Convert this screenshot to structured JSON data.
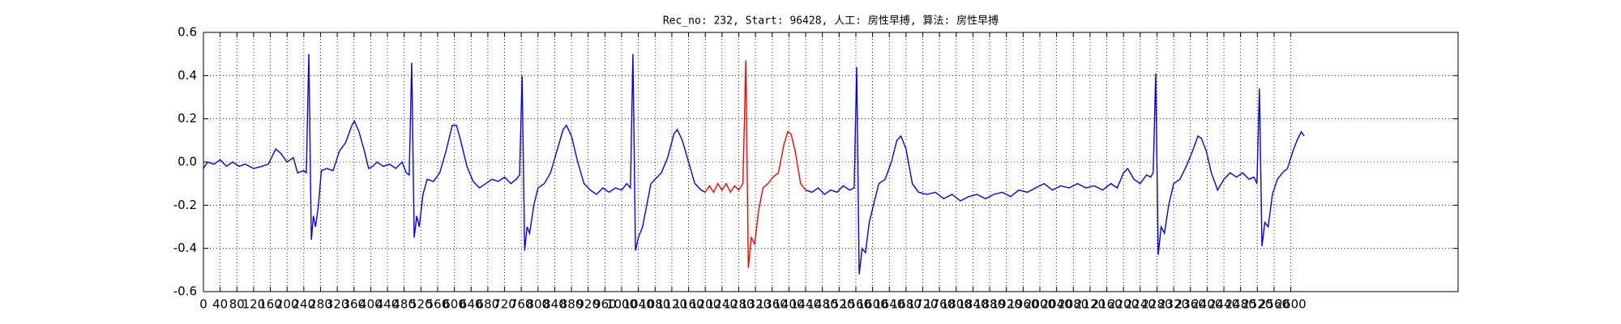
{
  "chart_data": {
    "type": "line",
    "title": "Rec_no: 232, Start: 96428, 人工: 房性早搏, 算法: 房性早搏",
    "x": [
      0,
      10,
      25,
      40,
      55,
      70,
      85,
      100,
      120,
      140,
      155,
      173,
      185,
      200,
      215,
      225,
      240,
      246,
      252,
      258,
      263,
      268,
      275,
      282,
      295,
      310,
      325,
      340,
      355,
      361,
      372,
      385,
      395,
      405,
      415,
      430,
      445,
      460,
      475,
      485,
      492,
      498,
      504,
      510,
      516,
      525,
      535,
      550,
      565,
      580,
      595,
      605,
      615,
      630,
      645,
      660,
      675,
      690,
      705,
      720,
      735,
      748,
      756,
      762,
      768,
      774,
      780,
      790,
      800,
      815,
      830,
      845,
      860,
      868,
      880,
      895,
      910,
      925,
      940,
      955,
      970,
      985,
      1000,
      1012,
      1021,
      1027,
      1033,
      1040,
      1050,
      1060,
      1070,
      1080,
      1095,
      1110,
      1125,
      1133,
      1145,
      1160,
      1175,
      1190,
      1200,
      1210,
      1220,
      1230,
      1240,
      1250,
      1260,
      1270,
      1280,
      1290,
      1297,
      1303,
      1310,
      1318,
      1328,
      1338,
      1350,
      1362,
      1375,
      1388,
      1397,
      1405,
      1415,
      1428,
      1440,
      1455,
      1470,
      1485,
      1500,
      1515,
      1530,
      1545,
      1556,
      1562,
      1568,
      1575,
      1583,
      1592,
      1602,
      1615,
      1630,
      1645,
      1658,
      1668,
      1680,
      1695,
      1710,
      1730,
      1750,
      1770,
      1790,
      1810,
      1830,
      1850,
      1870,
      1890,
      1910,
      1930,
      1950,
      1970,
      1990,
      2010,
      2030,
      2050,
      2070,
      2090,
      2110,
      2130,
      2150,
      2170,
      2185,
      2200,
      2210,
      2225,
      2240,
      2255,
      2265,
      2271,
      2277,
      2283,
      2290,
      2298,
      2308,
      2320,
      2335,
      2350,
      2365,
      2378,
      2386,
      2398,
      2410,
      2425,
      2440,
      2455,
      2470,
      2485,
      2500,
      2512,
      2519,
      2525,
      2531,
      2538,
      2546,
      2556,
      2568,
      2580,
      2592,
      2605,
      2615,
      2625,
      2632
    ],
    "series": [
      {
        "color": "#0000ff",
        "values": [
          -0.03,
          0.0,
          -0.01,
          0.01,
          -0.02,
          0.0,
          -0.02,
          -0.01,
          -0.03,
          -0.02,
          -0.01,
          0.06,
          0.04,
          0.0,
          0.02,
          -0.05,
          -0.04,
          -0.05,
          0.5,
          -0.36,
          -0.25,
          -0.3,
          -0.2,
          -0.04,
          -0.03,
          -0.04,
          0.05,
          0.09,
          0.17,
          0.19,
          0.14,
          0.05,
          -0.03,
          -0.02,
          0.0,
          -0.02,
          -0.01,
          -0.03,
          0.0,
          -0.05,
          -0.06,
          0.46,
          -0.35,
          -0.25,
          -0.3,
          -0.15,
          -0.08,
          -0.09,
          -0.05,
          0.05,
          0.17,
          0.17,
          0.1,
          -0.02,
          -0.09,
          -0.12,
          -0.1,
          -0.08,
          -0.09,
          -0.07,
          -0.1,
          -0.08,
          -0.06,
          0.4,
          -0.41,
          -0.3,
          -0.33,
          -0.2,
          -0.12,
          -0.1,
          -0.05,
          0.05,
          0.15,
          0.17,
          0.12,
          0.0,
          -0.1,
          -0.13,
          -0.15,
          -0.12,
          -0.14,
          -0.12,
          -0.13,
          -0.1,
          -0.12,
          0.5,
          -0.41,
          -0.35,
          -0.3,
          -0.2,
          -0.1,
          -0.08,
          -0.05,
          0.02,
          0.13,
          0.15,
          0.1,
          0.0,
          -0.1,
          -0.13,
          -0.14,
          null,
          null,
          null,
          null,
          null,
          null,
          null,
          null,
          null,
          null,
          null,
          null,
          null,
          null,
          null,
          null,
          null,
          null,
          null,
          null,
          null,
          null,
          null,
          -0.13,
          -0.14,
          -0.12,
          -0.15,
          -0.13,
          -0.14,
          -0.11,
          -0.13,
          -0.12,
          0.44,
          -0.52,
          -0.4,
          -0.42,
          -0.28,
          -0.2,
          -0.1,
          -0.08,
          0.0,
          0.1,
          0.12,
          0.06,
          -0.1,
          -0.14,
          -0.15,
          -0.14,
          -0.17,
          -0.15,
          -0.18,
          -0.16,
          -0.15,
          -0.17,
          -0.15,
          -0.14,
          -0.16,
          -0.13,
          -0.14,
          -0.12,
          -0.1,
          -0.13,
          -0.11,
          -0.12,
          -0.1,
          -0.12,
          -0.11,
          -0.13,
          -0.1,
          -0.12,
          -0.05,
          -0.03,
          -0.08,
          -0.1,
          -0.06,
          -0.07,
          -0.05,
          0.41,
          -0.43,
          -0.3,
          -0.33,
          -0.2,
          -0.1,
          -0.08,
          -0.02,
          0.05,
          0.12,
          0.11,
          0.05,
          -0.05,
          -0.13,
          -0.08,
          -0.05,
          -0.07,
          -0.05,
          -0.08,
          -0.07,
          -0.1,
          0.34,
          -0.39,
          -0.28,
          -0.3,
          -0.15,
          -0.08,
          -0.05,
          -0.03,
          0.05,
          0.1,
          0.14,
          0.12
        ]
      },
      {
        "color": "#ff0000",
        "values": [
          null,
          null,
          null,
          null,
          null,
          null,
          null,
          null,
          null,
          null,
          null,
          null,
          null,
          null,
          null,
          null,
          null,
          null,
          null,
          null,
          null,
          null,
          null,
          null,
          null,
          null,
          null,
          null,
          null,
          null,
          null,
          null,
          null,
          null,
          null,
          null,
          null,
          null,
          null,
          null,
          null,
          null,
          null,
          null,
          null,
          null,
          null,
          null,
          null,
          null,
          null,
          null,
          null,
          null,
          null,
          null,
          null,
          null,
          null,
          null,
          null,
          null,
          null,
          null,
          null,
          null,
          null,
          null,
          null,
          null,
          null,
          null,
          null,
          null,
          null,
          null,
          null,
          null,
          null,
          null,
          null,
          null,
          null,
          null,
          null,
          null,
          null,
          null,
          null,
          null,
          null,
          null,
          null,
          null,
          null,
          null,
          null,
          null,
          null,
          null,
          -0.14,
          -0.11,
          -0.14,
          -0.1,
          -0.13,
          -0.1,
          -0.14,
          -0.11,
          -0.13,
          -0.1,
          0.47,
          -0.49,
          -0.35,
          -0.38,
          -0.22,
          -0.12,
          -0.1,
          -0.07,
          -0.05,
          0.08,
          0.14,
          0.13,
          0.05,
          -0.1,
          -0.13,
          null,
          null,
          null,
          null,
          null,
          null,
          null,
          null,
          null,
          null,
          null,
          null,
          null,
          null,
          null,
          null,
          null,
          null,
          null,
          null,
          null,
          null,
          null,
          null,
          null,
          null,
          null,
          null,
          null,
          null,
          null,
          null,
          null,
          null,
          null,
          null,
          null,
          null,
          null,
          null,
          null,
          null,
          null,
          null,
          null,
          null,
          null,
          null,
          null,
          null,
          null,
          null,
          null,
          null,
          null,
          null,
          null,
          null,
          null,
          null,
          null,
          null,
          null,
          null,
          null,
          null,
          null,
          null,
          null,
          null,
          null,
          null,
          null,
          null,
          null,
          null,
          null,
          null,
          null,
          null,
          null,
          null,
          null,
          null,
          null,
          null
        ]
      }
    ],
    "xlim": [
      0,
      3000
    ],
    "xticks": [
      0,
      40,
      80,
      120,
      160,
      200,
      240,
      280,
      320,
      360,
      400,
      440,
      480,
      520,
      560,
      600,
      640,
      680,
      720,
      760,
      800,
      840,
      880,
      920,
      960,
      1000,
      1040,
      1080,
      1120,
      1160,
      1200,
      1240,
      1280,
      1320,
      1360,
      1400,
      1440,
      1480,
      1520,
      1560,
      1600,
      1640,
      1680,
      1720,
      1760,
      1800,
      1840,
      1880,
      1920,
      1960,
      2000,
      2040,
      2080,
      2120,
      2160,
      2200,
      2240,
      2280,
      2320,
      2360,
      2400,
      2440,
      2480,
      2520,
      2560,
      2600
    ],
    "ylim": [
      -0.6,
      0.6
    ],
    "yticks": [
      -0.6,
      -0.4,
      -0.2,
      {
        "value": 0,
        "label": "0.0"
      },
      0.2,
      0.4,
      0.6
    ],
    "grid": true
  }
}
